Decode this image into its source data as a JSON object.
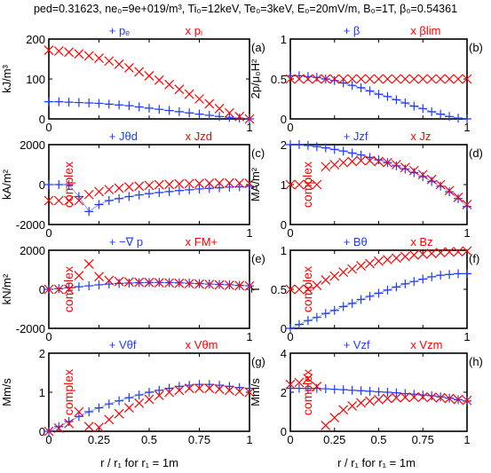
{
  "title": "ped=0.31623, ne₀=9e+019/m³, Ti₀=12keV, Te₀=3keV, E₀=20mV/m, B₀=1T, β₀=0.54361",
  "xlabel": "r / r₁ for r₁ = 1m",
  "colors": {
    "blue": "#1f3bff",
    "red": "#ff0000"
  },
  "chart_data": [
    {
      "type": "scatter",
      "panel": "(a)",
      "ylabel": "kJ/m³",
      "xlim": [
        0,
        1
      ],
      "ylim": [
        0,
        200
      ],
      "xticks": [
        "0",
        "",
        "",
        "",
        "1"
      ],
      "yticks": [
        "0",
        "100",
        "200"
      ],
      "legend": [
        "+ pₑ",
        "x pᵢ"
      ],
      "series": [
        {
          "name": "pₑ",
          "marker": "+",
          "color": "blue",
          "x": [
            0,
            0.05,
            0.1,
            0.15,
            0.2,
            0.25,
            0.3,
            0.35,
            0.4,
            0.45,
            0.5,
            0.55,
            0.6,
            0.65,
            0.7,
            0.75,
            0.8,
            0.85,
            0.9,
            0.95,
            1.0
          ],
          "y": [
            43,
            43,
            42,
            41,
            40,
            39,
            37,
            35,
            33,
            30,
            27,
            24,
            21,
            18,
            15,
            12,
            9,
            6,
            4,
            2,
            0
          ]
        },
        {
          "name": "pᵢ",
          "marker": "x",
          "color": "red",
          "x": [
            0,
            0.05,
            0.1,
            0.15,
            0.2,
            0.25,
            0.3,
            0.35,
            0.4,
            0.45,
            0.5,
            0.55,
            0.6,
            0.65,
            0.7,
            0.75,
            0.8,
            0.85,
            0.9,
            0.95,
            1.0
          ],
          "y": [
            172,
            170,
            167,
            163,
            158,
            152,
            145,
            137,
            128,
            118,
            108,
            97,
            86,
            74,
            62,
            50,
            38,
            26,
            15,
            6,
            0
          ]
        }
      ]
    },
    {
      "type": "scatter",
      "panel": "(b)",
      "ylabel": "2p/μ₀H²",
      "xlim": [
        0,
        1
      ],
      "ylim": [
        0,
        1
      ],
      "xticks": [
        "0",
        "",
        "",
        "",
        "1"
      ],
      "yticks": [
        "0",
        "0.5",
        "1"
      ],
      "legend": [
        "+ β",
        "x βlim"
      ],
      "series": [
        {
          "name": "β",
          "marker": "+",
          "color": "blue",
          "x": [
            0,
            0.05,
            0.1,
            0.15,
            0.2,
            0.25,
            0.3,
            0.35,
            0.4,
            0.45,
            0.5,
            0.55,
            0.6,
            0.65,
            0.7,
            0.75,
            0.8,
            0.85,
            0.9,
            0.95,
            1.0
          ],
          "y": [
            0.54,
            0.54,
            0.53,
            0.52,
            0.5,
            0.48,
            0.45,
            0.42,
            0.39,
            0.35,
            0.31,
            0.28,
            0.24,
            0.2,
            0.16,
            0.13,
            0.09,
            0.06,
            0.03,
            0.01,
            0
          ]
        },
        {
          "name": "βlim",
          "marker": "x",
          "color": "red",
          "x": [
            0,
            0.05,
            0.1,
            0.15,
            0.2,
            0.25,
            0.3,
            0.35,
            0.4,
            0.45,
            0.5,
            0.55,
            0.6,
            0.65,
            0.7,
            0.75,
            0.8,
            0.85,
            0.9,
            0.95,
            1.0
          ],
          "y": [
            0.5,
            0.5,
            0.5,
            0.5,
            0.5,
            0.5,
            0.5,
            0.5,
            0.5,
            0.5,
            0.5,
            0.5,
            0.5,
            0.5,
            0.5,
            0.5,
            0.5,
            0.5,
            0.5,
            0.5,
            0.5
          ]
        }
      ]
    },
    {
      "type": "scatter",
      "panel": "(c)",
      "ylabel": "kA/m²",
      "annotation": "complex",
      "xlim": [
        0,
        1
      ],
      "ylim": [
        -2000,
        2000
      ],
      "xticks": [
        "0",
        "",
        "",
        "",
        "1"
      ],
      "yticks": [
        "-2000",
        "0",
        "2000"
      ],
      "legend": [
        "+ Jθd",
        "x Jzd"
      ],
      "series": [
        {
          "name": "Jθd",
          "marker": "+",
          "color": "blue",
          "x": [
            0,
            0.05,
            0.1,
            0.15,
            0.2,
            0.25,
            0.3,
            0.35,
            0.4,
            0.45,
            0.5,
            0.55,
            0.6,
            0.65,
            0.7,
            0.75,
            0.8,
            0.85,
            0.9,
            0.95,
            1.0
          ],
          "y": [
            0,
            0,
            0,
            -600,
            -1350,
            -1000,
            -800,
            -700,
            -600,
            -520,
            -450,
            -400,
            -350,
            -300,
            -260,
            -220,
            -190,
            -160,
            -130,
            -110,
            -90
          ]
        },
        {
          "name": "Jzd",
          "marker": "x",
          "color": "red",
          "x": [
            0,
            0.05,
            0.1,
            0.15,
            0.2,
            0.25,
            0.3,
            0.35,
            0.4,
            0.45,
            0.5,
            0.55,
            0.6,
            0.65,
            0.7,
            0.75,
            0.8,
            0.85,
            0.9,
            0.95,
            1.0
          ],
          "y": [
            -800,
            -800,
            -800,
            -800,
            -500,
            -350,
            -250,
            -180,
            -120,
            -80,
            -40,
            -10,
            10,
            30,
            50,
            60,
            70,
            80,
            80,
            70,
            60
          ]
        }
      ]
    },
    {
      "type": "scatter",
      "panel": "(d)",
      "ylabel": "MA/m²",
      "annotation": "complex",
      "xlim": [
        0,
        1
      ],
      "ylim": [
        0,
        2
      ],
      "xticks": [
        "0",
        "",
        "",
        "",
        "1"
      ],
      "yticks": [
        "0",
        "1",
        "2"
      ],
      "legend": [
        "+ Jzf",
        "x Jz"
      ],
      "series": [
        {
          "name": "Jzf",
          "marker": "+",
          "color": "blue",
          "x": [
            0,
            0.05,
            0.1,
            0.15,
            0.2,
            0.25,
            0.3,
            0.35,
            0.4,
            0.45,
            0.5,
            0.55,
            0.6,
            0.65,
            0.7,
            0.75,
            0.8,
            0.85,
            0.9,
            0.95,
            1.0
          ],
          "y": [
            2.0,
            2.0,
            1.98,
            1.95,
            1.92,
            1.88,
            1.84,
            1.79,
            1.74,
            1.68,
            1.62,
            1.55,
            1.47,
            1.39,
            1.3,
            1.2,
            1.08,
            0.96,
            0.82,
            0.65,
            0.45
          ]
        },
        {
          "name": "Jz",
          "marker": "x",
          "color": "red",
          "x": [
            0,
            0.05,
            0.1,
            0.15,
            0.2,
            0.25,
            0.3,
            0.35,
            0.4,
            0.45,
            0.5,
            0.55,
            0.6,
            0.65,
            0.7,
            0.75,
            0.8,
            0.85,
            0.9,
            0.95,
            1.0
          ],
          "y": [
            1.0,
            1.0,
            1.0,
            1.0,
            1.45,
            1.5,
            1.55,
            1.58,
            1.6,
            1.6,
            1.58,
            1.55,
            1.5,
            1.43,
            1.35,
            1.25,
            1.13,
            1.0,
            0.85,
            0.68,
            0.5
          ]
        }
      ]
    },
    {
      "type": "scatter",
      "panel": "(e)",
      "ylabel": "kN/m²",
      "annotation": "complex",
      "xlim": [
        0,
        1
      ],
      "ylim": [
        -2000,
        2000
      ],
      "xticks": [
        "0",
        "",
        "",
        "",
        "1"
      ],
      "yticks": [
        "-2000",
        "0",
        "2000"
      ],
      "legend": [
        "+ −∇ p",
        "x FM+"
      ],
      "series": [
        {
          "name": "−∇ p",
          "marker": "+",
          "color": "blue",
          "x": [
            0,
            0.05,
            0.1,
            0.15,
            0.2,
            0.25,
            0.3,
            0.35,
            0.4,
            0.45,
            0.5,
            0.55,
            0.6,
            0.65,
            0.7,
            0.75,
            0.8,
            0.85,
            0.9,
            0.95,
            1.0
          ],
          "y": [
            0,
            30,
            80,
            130,
            180,
            230,
            270,
            300,
            320,
            340,
            350,
            350,
            340,
            330,
            310,
            290,
            270,
            250,
            230,
            200,
            180
          ]
        },
        {
          "name": "FM+",
          "marker": "x",
          "color": "red",
          "x": [
            0,
            0.05,
            0.1,
            0.15,
            0.2,
            0.25,
            0.3,
            0.35,
            0.4,
            0.45,
            0.5,
            0.55,
            0.6,
            0.65,
            0.7,
            0.75,
            0.8,
            0.85,
            0.9,
            0.95,
            1.0
          ],
          "y": [
            0,
            0,
            0,
            700,
            1300,
            650,
            450,
            400,
            380,
            360,
            350,
            340,
            330,
            310,
            290,
            270,
            250,
            230,
            210,
            190,
            170
          ]
        }
      ]
    },
    {
      "type": "scatter",
      "panel": "(f)",
      "ylabel": "T",
      "annotation": "complex",
      "xlim": [
        0,
        1
      ],
      "ylim": [
        0,
        1
      ],
      "xticks": [
        "0",
        "",
        "",
        "",
        "1"
      ],
      "yticks": [
        "0",
        "0.5",
        "1"
      ],
      "legend": [
        "+ Bθ",
        "x Bz"
      ],
      "series": [
        {
          "name": "Bθ",
          "marker": "+",
          "color": "blue",
          "x": [
            0,
            0.05,
            0.1,
            0.15,
            0.2,
            0.25,
            0.3,
            0.35,
            0.4,
            0.45,
            0.5,
            0.55,
            0.6,
            0.65,
            0.7,
            0.75,
            0.8,
            0.85,
            0.9,
            0.95,
            1.0
          ],
          "y": [
            0,
            0.05,
            0.1,
            0.14,
            0.19,
            0.23,
            0.28,
            0.32,
            0.37,
            0.41,
            0.45,
            0.49,
            0.53,
            0.57,
            0.6,
            0.63,
            0.66,
            0.68,
            0.69,
            0.7,
            0.7
          ]
        },
        {
          "name": "Bz",
          "marker": "x",
          "color": "red",
          "x": [
            0,
            0.05,
            0.1,
            0.15,
            0.2,
            0.25,
            0.3,
            0.35,
            0.4,
            0.45,
            0.5,
            0.55,
            0.6,
            0.65,
            0.7,
            0.75,
            0.8,
            0.85,
            0.9,
            0.95,
            1.0
          ],
          "y": [
            0.5,
            0.5,
            0.5,
            0.55,
            0.62,
            0.67,
            0.72,
            0.76,
            0.8,
            0.83,
            0.86,
            0.88,
            0.9,
            0.92,
            0.94,
            0.95,
            0.96,
            0.97,
            0.98,
            0.98,
            0.99
          ]
        }
      ]
    },
    {
      "type": "scatter",
      "panel": "(g)",
      "ylabel": "Mm/s",
      "annotation": "complex",
      "xlim": [
        0,
        1
      ],
      "ylim": [
        0,
        2
      ],
      "xticks": [
        "0",
        "0.25",
        "0.5",
        "0.75",
        "1"
      ],
      "yticks": [
        "0",
        "1",
        "2"
      ],
      "legend": [
        "+ Vθf",
        "x Vθm"
      ],
      "series": [
        {
          "name": "Vθf",
          "marker": "+",
          "color": "blue",
          "x": [
            0,
            0.05,
            0.1,
            0.15,
            0.2,
            0.25,
            0.3,
            0.35,
            0.4,
            0.45,
            0.5,
            0.55,
            0.6,
            0.65,
            0.7,
            0.75,
            0.8,
            0.85,
            0.9,
            0.95,
            1.0
          ],
          "y": [
            0,
            0.12,
            0.25,
            0.38,
            0.5,
            0.6,
            0.7,
            0.78,
            0.86,
            0.93,
            1.0,
            1.05,
            1.1,
            1.15,
            1.18,
            1.2,
            1.2,
            1.18,
            1.15,
            1.12,
            1.1
          ]
        },
        {
          "name": "Vθm",
          "marker": "x",
          "color": "red",
          "x": [
            0,
            0.05,
            0.1,
            0.15,
            0.2,
            0.25,
            0.3,
            0.35,
            0.4,
            0.45,
            0.5,
            0.55,
            0.6,
            0.65,
            0.7,
            0.75,
            0.8,
            0.85,
            0.9,
            0.95,
            1.0
          ],
          "y": [
            0,
            0.08,
            0.2,
            0.5,
            0.12,
            0.1,
            0.3,
            0.45,
            0.6,
            0.72,
            0.82,
            0.92,
            1.0,
            1.05,
            1.1,
            1.1,
            1.1,
            1.08,
            1.05,
            1.02,
            1.0
          ]
        }
      ]
    },
    {
      "type": "scatter",
      "panel": "(h)",
      "ylabel": "Mm/s",
      "annotation": "complex",
      "xlim": [
        0,
        1
      ],
      "ylim": [
        0,
        4
      ],
      "xticks": [
        "0",
        "0.25",
        "0.5",
        "0.75",
        "1"
      ],
      "yticks": [
        "0",
        "2",
        "4"
      ],
      "legend": [
        "+ Vzf",
        "x Vzm"
      ],
      "series": [
        {
          "name": "Vzf",
          "marker": "+",
          "color": "blue",
          "x": [
            0,
            0.05,
            0.1,
            0.15,
            0.2,
            0.25,
            0.3,
            0.35,
            0.4,
            0.45,
            0.5,
            0.55,
            0.6,
            0.65,
            0.7,
            0.75,
            0.8,
            0.85,
            0.9,
            0.95,
            1.0
          ],
          "y": [
            2.2,
            2.2,
            2.2,
            2.2,
            2.18,
            2.15,
            2.13,
            2.1,
            2.08,
            2.05,
            2.02,
            2.0,
            1.97,
            1.93,
            1.9,
            1.86,
            1.82,
            1.76,
            1.7,
            1.62,
            1.55
          ]
        },
        {
          "name": "Vzm",
          "marker": "x",
          "color": "red",
          "x": [
            0,
            0.05,
            0.1,
            0.15,
            0.2,
            0.25,
            0.3,
            0.35,
            0.4,
            0.45,
            0.5,
            0.55,
            0.6,
            0.65,
            0.7,
            0.75,
            0.8,
            0.85,
            0.9,
            0.95,
            1.0
          ],
          "y": [
            2.4,
            2.5,
            2.7,
            2.3,
            0.3,
            0.7,
            1.1,
            1.3,
            1.45,
            1.55,
            1.62,
            1.68,
            1.72,
            1.74,
            1.75,
            1.75,
            1.74,
            1.72,
            1.68,
            1.63,
            1.58
          ]
        }
      ]
    }
  ]
}
